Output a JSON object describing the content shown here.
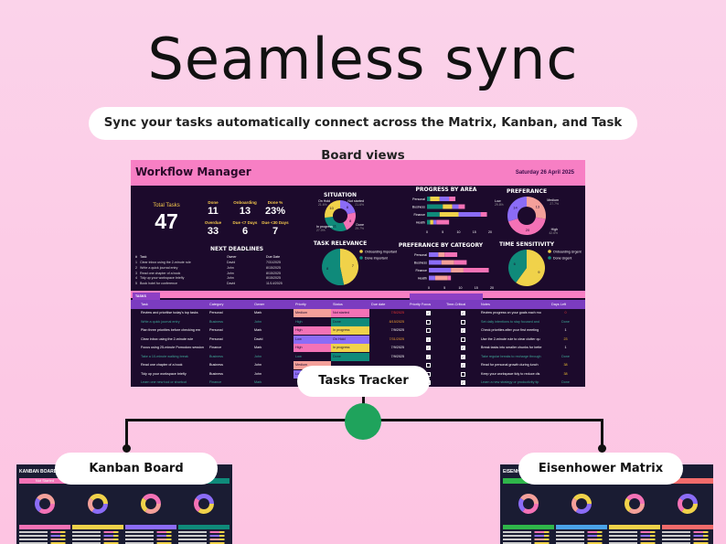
{
  "hero": {
    "title": "Seamless sync",
    "subtitle": "Sync your tasks automatically connect across the Matrix, Kanban, and Task Board views"
  },
  "dashboard": {
    "title": "Workflow Manager",
    "date": "Saturday 26 April 2025",
    "total": {
      "label": "Total Tasks",
      "value": "47"
    },
    "stats": [
      {
        "label": "Done",
        "value": "11"
      },
      {
        "label": "Onboarding",
        "value": "13"
      },
      {
        "label": "Done %",
        "value": "23%"
      },
      {
        "label": "Overdue",
        "value": "33"
      },
      {
        "label": "Due <7 Days",
        "value": "6"
      },
      {
        "label": "Due <30 Days",
        "value": "7"
      }
    ],
    "deadlines": {
      "title": "NEXT DEADLINES",
      "headers": [
        "#",
        "Task",
        "Owner",
        "Due Date"
      ],
      "rows": [
        [
          "1",
          "Clear inbox using the 2-minute rule",
          "David",
          "7/31/2025"
        ],
        [
          "2",
          "Write a quick journal entry",
          "John",
          "8/15/2025"
        ],
        [
          "3",
          "Read one chapter of a book",
          "John",
          "8/15/2025"
        ],
        [
          "4",
          "Tidy up your workspace briefly",
          "John",
          "8/15/2025"
        ],
        [
          "5",
          "Book hotel for conference",
          "David",
          "11/14/2025"
        ]
      ]
    }
  },
  "chart_data": [
    {
      "type": "pie",
      "title": "SITUATION",
      "donut": true,
      "slices": [
        {
          "label": "On Hold",
          "value": 8,
          "color": "#8b6cf6"
        },
        {
          "label": "Not started",
          "value": 8,
          "color": "#f472b6"
        },
        {
          "label": "Done",
          "value": 11,
          "color": "#0f8a7a"
        },
        {
          "label": "In progress",
          "value": 10,
          "color": "#f0d24a"
        }
      ]
    },
    {
      "type": "pie",
      "title": "TASK RELEVANCE",
      "slices": [
        {
          "label": "Onboarding Important",
          "value": 7,
          "color": "#f0d24a"
        },
        {
          "label": "Done Important",
          "value": 8,
          "color": "#0f8a7a"
        }
      ]
    },
    {
      "type": "bar",
      "stacked": true,
      "orientation": "horizontal",
      "title": "PROGRESS BY AREA",
      "categories": [
        "Personal",
        "Business",
        "Finance",
        "Health"
      ],
      "xlim": [
        0,
        20
      ],
      "ticks": [
        "0",
        "5",
        "10",
        "15",
        "20"
      ],
      "series": [
        {
          "values": [
            1,
            5,
            4,
            1
          ],
          "color": "#0f8a7a"
        },
        {
          "values": [
            3,
            3,
            6,
            1
          ],
          "color": "#f0d24a"
        },
        {
          "values": [
            3,
            2,
            7,
            1
          ],
          "color": "#8b6cf6"
        },
        {
          "values": [
            2,
            2,
            2,
            4
          ],
          "color": "#f472b6"
        }
      ]
    },
    {
      "type": "pie",
      "title": "PREFERANCE",
      "donut": true,
      "slices": [
        {
          "label": "Medium",
          "value": 13,
          "color": "#f4a09a"
        },
        {
          "label": "High",
          "value": 20,
          "color": "#f472b6"
        },
        {
          "label": "Low",
          "value": 14,
          "color": "#8b6cf6"
        }
      ]
    },
    {
      "type": "bar",
      "stacked": true,
      "orientation": "horizontal",
      "title": "PREFERANCE BY CATEGORY",
      "categories": [
        "Personal",
        "Business",
        "Finance",
        "Health"
      ],
      "xlim": [
        0,
        20
      ],
      "ticks": [
        "0",
        "5",
        "10",
        "15",
        "20"
      ],
      "series": [
        {
          "values": [
            3,
            4,
            7,
            2
          ],
          "color": "#8b6cf6"
        },
        {
          "values": [
            2,
            4,
            4,
            4
          ],
          "color": "#f4a09a"
        },
        {
          "values": [
            4,
            4,
            8,
            1
          ],
          "color": "#f472b6"
        }
      ]
    },
    {
      "type": "pie",
      "title": "TIME SENSITIVITY",
      "slices": [
        {
          "label": "Onboarding Urgent",
          "value": 9,
          "color": "#f0d24a"
        },
        {
          "label": "Done Urgent",
          "value": 6,
          "color": "#0f8a7a"
        }
      ]
    }
  ],
  "tasks": {
    "tab": "TASKS",
    "headers": [
      "Task",
      "Category",
      "Owner",
      "Priority",
      "Status",
      "Due date",
      "Priority Focus",
      "Time-Critical",
      "Notes",
      "Days Left"
    ],
    "rows": [
      {
        "task": "Review and prioritise today's top tasks",
        "category": "Personal",
        "owner": "Mark",
        "priority": "Medium",
        "status": "Not started",
        "due": "7/5/2025",
        "pf": true,
        "tc": true,
        "notes": "Review progress on your goals each mo",
        "days": "0"
      },
      {
        "task": "Write a quick journal entry",
        "category": "Business",
        "owner": "John",
        "priority": "High",
        "status": "Done",
        "due": "8/15/2025",
        "pf": false,
        "tc": false,
        "notes": "Set daily intentions to stay focused and",
        "days": "Done"
      },
      {
        "task": "Plan three priorities before checking em",
        "category": "Personal",
        "owner": "Mark",
        "priority": "High",
        "status": "In progress",
        "due": "7/9/2025",
        "pf": false,
        "tc": true,
        "notes": "Check priorities after your first meeting",
        "days": "1"
      },
      {
        "task": "Clear inbox using the 2-minute rule",
        "category": "Personal",
        "owner": "David",
        "priority": "Low",
        "status": "On Hold",
        "due": "7/31/2025",
        "pf": true,
        "tc": false,
        "notes": "Use the 2-minute rule to clear clutter qu",
        "days": "23"
      },
      {
        "task": "Focus using 25-minute Pomodoro session",
        "category": "Finance",
        "owner": "Mark",
        "priority": "High",
        "status": "In progress",
        "due": "7/9/2025",
        "pf": true,
        "tc": true,
        "notes": "Break tasks into smaller chunks for bette",
        "days": "1"
      },
      {
        "task": "Take a 10-minute walking break",
        "category": "Business",
        "owner": "John",
        "priority": "Low",
        "status": "Done",
        "due": "7/9/2025",
        "pf": true,
        "tc": true,
        "notes": "Take regular breaks to recharge through",
        "days": "Done"
      },
      {
        "task": "Read one chapter of a book",
        "category": "Business",
        "owner": "John",
        "priority": "Medium",
        "status": "",
        "due": "",
        "pf": false,
        "tc": true,
        "notes": "Read for personal growth during lunch",
        "days": "38"
      },
      {
        "task": "Tidy up your workspace briefly",
        "category": "Business",
        "owner": "John",
        "priority": "Low",
        "status": "",
        "due": "",
        "pf": false,
        "tc": false,
        "notes": "Keep your workspace tidy to reduce dis",
        "days": "38"
      },
      {
        "task": "Learn one new tool or shortcut",
        "category": "Finance",
        "owner": "Mark",
        "priority": "",
        "status": "",
        "due": "",
        "pf": false,
        "tc": true,
        "notes": "Learn a new strategy or productivity tip",
        "days": "Done"
      }
    ]
  },
  "colors": {
    "priority": {
      "Medium": "#f4a09a",
      "High": "#f472b6",
      "Low": "#8b6cf6"
    },
    "status": {
      "Not started": "#f472b6",
      "Done": "#0f8a7a",
      "In progress": "#f0d24a",
      "On Hold": "#8b6cf6"
    }
  },
  "labels": {
    "tasks_tracker": "Tasks Tracker",
    "kanban": "Kanban Board",
    "eisenhower": "Eisenhower Matrix",
    "kanban_thumb_title": "KANBAN BOARD",
    "eisenhower_thumb_title": "EISENHOWER",
    "kanban_first_column": "Not Started"
  }
}
